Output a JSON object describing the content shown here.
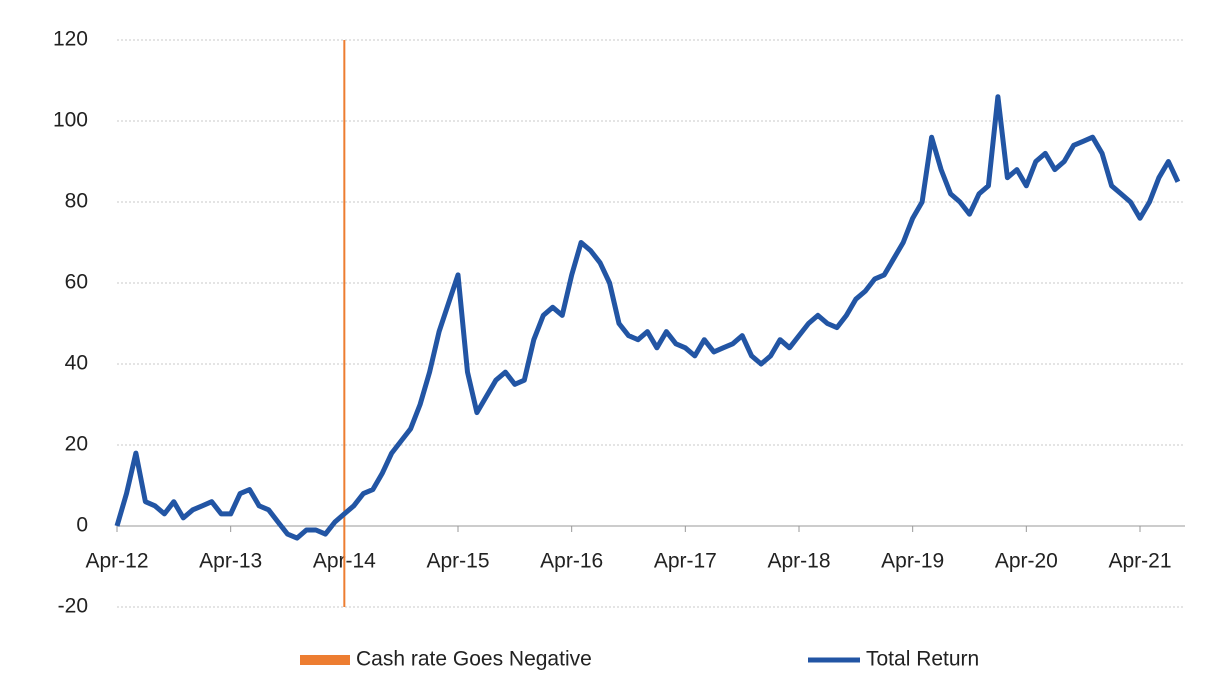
{
  "chart_data": {
    "type": "line",
    "categories": [
      "Apr-12",
      null,
      null,
      null,
      null,
      null,
      null,
      null,
      null,
      null,
      null,
      null,
      "Apr-13",
      null,
      null,
      null,
      null,
      null,
      null,
      null,
      null,
      null,
      null,
      null,
      "Apr-14",
      null,
      null,
      null,
      null,
      null,
      null,
      null,
      null,
      null,
      null,
      null,
      "Apr-15",
      null,
      null,
      null,
      null,
      null,
      null,
      null,
      null,
      null,
      null,
      null,
      "Apr-16",
      null,
      null,
      null,
      null,
      null,
      null,
      null,
      null,
      null,
      null,
      null,
      "Apr-17",
      null,
      null,
      null,
      null,
      null,
      null,
      null,
      null,
      null,
      null,
      null,
      "Apr-18",
      null,
      null,
      null,
      null,
      null,
      null,
      null,
      null,
      null,
      null,
      null,
      "Apr-19",
      null,
      null,
      null,
      null,
      null,
      null,
      null,
      null,
      null,
      null,
      null,
      "Apr-20",
      null,
      null,
      null,
      null,
      null,
      null,
      null,
      null,
      null,
      null,
      null,
      "Apr-21",
      null,
      null,
      null,
      null
    ],
    "series": [
      {
        "name": "Total Return",
        "color": "#2255a4",
        "values": [
          0,
          8,
          18,
          6,
          5,
          3,
          6,
          2,
          4,
          5,
          6,
          3,
          3,
          8,
          9,
          5,
          4,
          1,
          -2,
          -3,
          -1,
          -1,
          -2,
          1,
          3,
          5,
          8,
          9,
          13,
          18,
          21,
          24,
          30,
          38,
          48,
          55,
          62,
          38,
          28,
          32,
          36,
          38,
          35,
          36,
          46,
          52,
          54,
          52,
          62,
          70,
          68,
          65,
          60,
          50,
          47,
          46,
          48,
          44,
          48,
          45,
          44,
          42,
          46,
          43,
          44,
          45,
          47,
          42,
          40,
          42,
          46,
          44,
          47,
          50,
          52,
          50,
          49,
          52,
          56,
          58,
          61,
          62,
          66,
          70,
          76,
          80,
          96,
          88,
          82,
          80,
          77,
          82,
          84,
          106,
          86,
          88,
          84,
          90,
          92,
          88,
          90,
          94,
          95,
          96,
          92,
          84,
          82,
          80,
          76,
          80,
          86,
          90,
          85
        ]
      }
    ],
    "events": [
      {
        "name": "Cash rate Goes Negative",
        "color": "#ed7d31",
        "x": "Apr-14"
      }
    ],
    "ylim": [
      -20,
      120
    ],
    "yticks": [
      -20,
      0,
      20,
      40,
      60,
      80,
      100,
      120
    ],
    "grid": true
  }
}
